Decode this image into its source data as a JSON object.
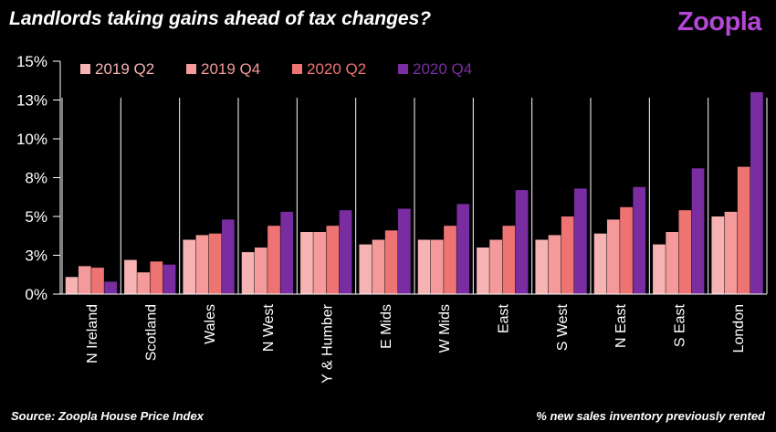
{
  "title": "Landlords taking gains ahead of tax changes?",
  "logo": "Zoopla",
  "source": "Source: Zoopla House Price Index",
  "note": "% new sales inventory previously rented",
  "chart_data": {
    "type": "bar",
    "ylim": [
      0,
      15
    ],
    "yticks": [
      {
        "value": 0,
        "label": "0%"
      },
      {
        "value": 2.5,
        "label": "3%"
      },
      {
        "value": 5,
        "label": "5%"
      },
      {
        "value": 7.5,
        "label": "8%"
      },
      {
        "value": 10,
        "label": "10%"
      },
      {
        "value": 12.5,
        "label": "13%"
      },
      {
        "value": 15,
        "label": "15%"
      }
    ],
    "categories": [
      "N Ireland",
      "Scotland",
      "Wales",
      "N West",
      "Y & Humber",
      "E Mids",
      "W Mids",
      "East",
      "S West",
      "N East",
      "S East",
      "London"
    ],
    "series": [
      {
        "name": "2019 Q2",
        "color": "#f7b3b3",
        "values": [
          1.1,
          2.2,
          3.5,
          2.7,
          4.0,
          3.2,
          3.5,
          3.0,
          3.5,
          3.9,
          3.2,
          5.0
        ]
      },
      {
        "name": "2019 Q4",
        "color": "#f49a9a",
        "values": [
          1.8,
          1.4,
          3.8,
          3.0,
          4.0,
          3.5,
          3.5,
          3.5,
          3.8,
          4.8,
          4.0,
          5.3
        ]
      },
      {
        "name": "2020 Q2",
        "color": "#ee7474",
        "values": [
          1.7,
          2.1,
          3.9,
          4.4,
          4.4,
          4.1,
          4.4,
          4.4,
          5.0,
          5.6,
          5.4,
          8.2
        ]
      },
      {
        "name": "2020 Q4",
        "color": "#7a2da0",
        "values": [
          0.8,
          1.9,
          4.8,
          5.3,
          5.4,
          5.5,
          5.8,
          6.7,
          6.8,
          6.9,
          8.1,
          13.0
        ]
      }
    ],
    "grid": false,
    "legend": "top-left"
  }
}
